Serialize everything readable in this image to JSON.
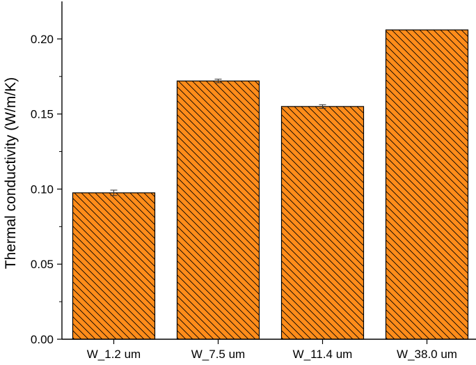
{
  "chart_data": {
    "type": "bar",
    "categories": [
      "W_1.2 um",
      "W_7.5 um",
      "W_11.4 um",
      "W_38.0 um"
    ],
    "values": [
      0.0975,
      0.172,
      0.155,
      0.206
    ],
    "errors": [
      0.0018,
      0.0012,
      0.0012,
      0.0
    ],
    "xlabel": "",
    "ylabel": "Thermal conductivity (W/m/K)",
    "ylim": [
      0,
      0.225
    ],
    "yticks": [
      0.0,
      0.05,
      0.1,
      0.15,
      0.2
    ],
    "ytick_labels": [
      "0.00",
      "0.05",
      "0.10",
      "0.15",
      "0.20"
    ],
    "grid": false,
    "bar_fill": "#ff8c1a",
    "hatch": "diagonal-down-right",
    "hatch_color": "#000000"
  }
}
